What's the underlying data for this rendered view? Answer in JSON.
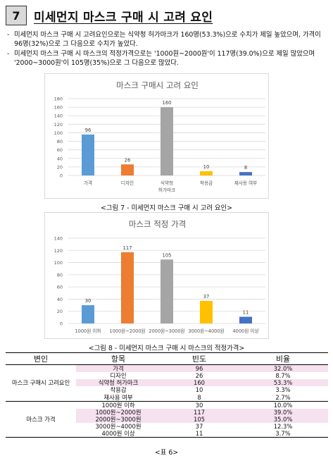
{
  "section": {
    "number": "7",
    "title": "미세먼지 마스크 구매 시 고려 요인"
  },
  "bullets": [
    "미세먼지 마스크 구매 시 고려요인으로는 식약청 허가마크가 160명(53.3%)으로 수치가 제일 높았으며, 가격이 96명(32%)으로 그 다음으로 수치가 높았다.",
    "미세먼지 마스크 구매 시 마스크의 적정가격으로는 '1000원~2000원'이 117명(39.0%)으로 제일 많았으며 '2000~3000원'이 105명(35%)으로 그 다음으로 많았다."
  ],
  "chart_data": [
    {
      "type": "bar",
      "title": "마스크 구매시 고려 요인",
      "categories": [
        "가격",
        "디자인",
        "식약청 허가마크",
        "착용감",
        "재사용 여부"
      ],
      "category_lines": [
        [
          "가격"
        ],
        [
          "디자인"
        ],
        [
          "식약청",
          "허가마크"
        ],
        [
          "착용감"
        ],
        [
          "재사용 여부"
        ]
      ],
      "values": [
        96,
        26,
        160,
        10,
        8
      ],
      "colors": [
        "#5b9bd5",
        "#ed7d31",
        "#a5a5a5",
        "#ffc000",
        "#4472c4"
      ],
      "ylim": [
        0,
        180
      ],
      "yticks": [
        0,
        20,
        40,
        60,
        80,
        100,
        120,
        140,
        160,
        180
      ],
      "grid": true
    },
    {
      "type": "bar",
      "title": "마스크 적정 가격",
      "categories": [
        "1000원 이하",
        "1000원~2000원",
        "2000원~3000원",
        "3000원~4000원",
        "4000원 이상"
      ],
      "category_lines": [
        [
          "1000원 이하"
        ],
        [
          "1000원~2000원"
        ],
        [
          "2000원~3000원"
        ],
        [
          "3000원~4000원"
        ],
        [
          "4000원 이상"
        ]
      ],
      "values": [
        30,
        117,
        105,
        37,
        11
      ],
      "colors": [
        "#5b9bd5",
        "#ed7d31",
        "#a5a5a5",
        "#ffc000",
        "#4472c4"
      ],
      "ylim": [
        0,
        140
      ],
      "yticks": [
        0,
        20,
        40,
        60,
        80,
        100,
        120,
        140
      ],
      "grid": true
    }
  ],
  "captions": {
    "fig7": "<그림 7 - 미세먼지 마스크 구매 시 고려 요인>",
    "fig8": "<그림 8 - 미세먼지 마스크 구매 시 마스크의 적정가격>",
    "table6": "<표 6>"
  },
  "table": {
    "headers": [
      "변인",
      "항목",
      "빈도",
      "비율"
    ],
    "groups": [
      {
        "variable": "마스크 구매시 고려요인",
        "rows": [
          {
            "item": "가격",
            "freq": "96",
            "ratio": "32.0%",
            "highlight": true
          },
          {
            "item": "디자인",
            "freq": "26",
            "ratio": "8.7%",
            "highlight": false
          },
          {
            "item": "식약청 허가마크",
            "freq": "160",
            "ratio": "53.3%",
            "highlight": true
          },
          {
            "item": "착용감",
            "freq": "10",
            "ratio": "3.3%",
            "highlight": false
          },
          {
            "item": "재사용 여부",
            "freq": "8",
            "ratio": "2.7%",
            "highlight": false
          }
        ]
      },
      {
        "variable": "마스크 가격",
        "rows": [
          {
            "item": "1000원 이하",
            "freq": "30",
            "ratio": "10.0%",
            "highlight": false
          },
          {
            "item": "1000원~2000원",
            "freq": "117",
            "ratio": "39.0%",
            "highlight": true
          },
          {
            "item": "2000원~3000원",
            "freq": "105",
            "ratio": "35.0%",
            "highlight": true
          },
          {
            "item": "3000원~4000원",
            "freq": "37",
            "ratio": "12.3%",
            "highlight": false
          },
          {
            "item": "4000원 이상",
            "freq": "11",
            "ratio": "3.7%",
            "highlight": false
          }
        ]
      }
    ]
  }
}
